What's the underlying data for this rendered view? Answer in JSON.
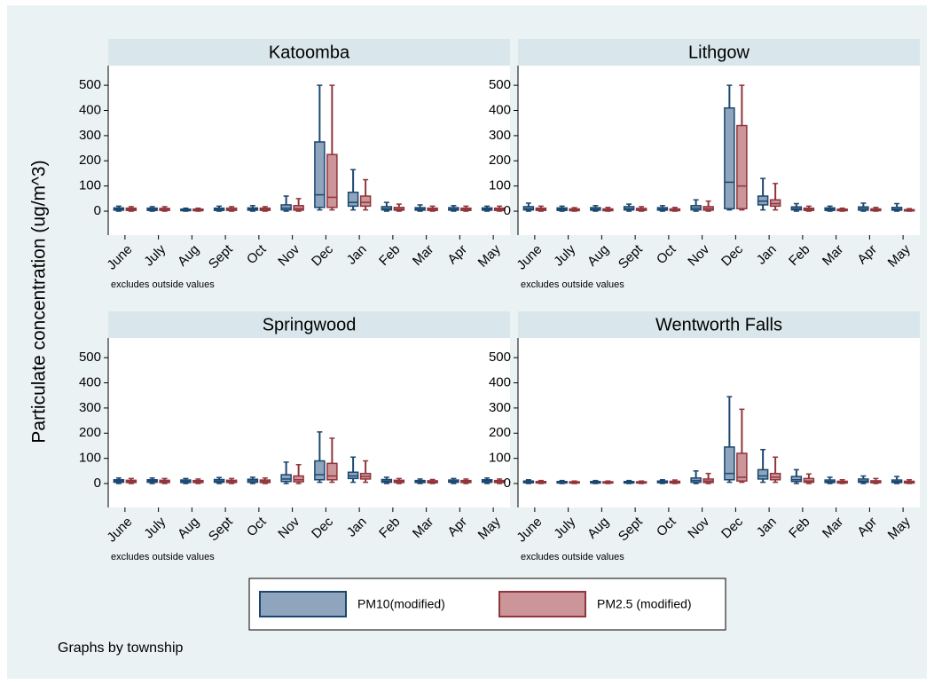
{
  "chart_data": {
    "type": "box",
    "ylabel": "Particulate concentration (ug/m^3)",
    "categories": [
      "June",
      "July",
      "Aug",
      "Sept",
      "Oct",
      "Nov",
      "Dec",
      "Jan",
      "Feb",
      "Mar",
      "Apr",
      "May"
    ],
    "series": [
      {
        "name": "PM10(modified)",
        "color": "#1a476f",
        "fill": "#8fa4bd"
      },
      {
        "name": "PM2.5 (modified)",
        "color": "#90353b",
        "fill": "#cc9599"
      }
    ],
    "ylim": [
      -95,
      578
    ],
    "yticks": [
      0,
      100,
      200,
      300,
      400,
      500
    ],
    "note": "Graphs by township",
    "panels": [
      {
        "title": "Katoomba",
        "note": "excludes outside values",
        "series": [
          {
            "values": [
              [
                0,
                4,
                8,
                13,
                20
              ],
              [
                0,
                3,
                7,
                12,
                18
              ],
              [
                0,
                2,
                5,
                8,
                12
              ],
              [
                0,
                3,
                7,
                12,
                20
              ],
              [
                0,
                4,
                8,
                13,
                22
              ],
              [
                0,
                5,
                12,
                25,
                60
              ],
              [
                5,
                15,
                65,
                275,
                500
              ],
              [
                5,
                20,
                35,
                75,
                165
              ],
              [
                0,
                5,
                10,
                18,
                35
              ],
              [
                0,
                4,
                8,
                14,
                25
              ],
              [
                0,
                4,
                8,
                14,
                22
              ],
              [
                0,
                4,
                8,
                13,
                20
              ]
            ]
          },
          {
            "values": [
              [
                0,
                3,
                7,
                12,
                18
              ],
              [
                0,
                3,
                6,
                11,
                18
              ],
              [
                0,
                2,
                4,
                8,
                12
              ],
              [
                0,
                3,
                6,
                12,
                18
              ],
              [
                0,
                3,
                7,
                12,
                18
              ],
              [
                0,
                4,
                10,
                22,
                50
              ],
              [
                5,
                15,
                55,
                225,
                500
              ],
              [
                5,
                20,
                35,
                60,
                125
              ],
              [
                0,
                4,
                8,
                15,
                28
              ],
              [
                0,
                3,
                7,
                12,
                20
              ],
              [
                0,
                3,
                7,
                12,
                20
              ],
              [
                0,
                3,
                7,
                12,
                20
              ]
            ]
          }
        ]
      },
      {
        "title": "Lithgow",
        "note": "excludes outside values",
        "series": [
          {
            "values": [
              [
                0,
                5,
                10,
                18,
                32
              ],
              [
                0,
                3,
                8,
                13,
                20
              ],
              [
                0,
                4,
                8,
                14,
                22
              ],
              [
                0,
                5,
                10,
                18,
                28
              ],
              [
                0,
                4,
                8,
                14,
                22
              ],
              [
                0,
                5,
                12,
                22,
                45
              ],
              [
                5,
                10,
                115,
                410,
                500
              ],
              [
                5,
                25,
                40,
                60,
                130
              ],
              [
                0,
                5,
                10,
                17,
                30
              ],
              [
                0,
                3,
                8,
                13,
                20
              ],
              [
                0,
                4,
                10,
                17,
                32
              ],
              [
                0,
                4,
                8,
                15,
                30
              ]
            ]
          },
          {
            "values": [
              [
                0,
                3,
                7,
                12,
                20
              ],
              [
                0,
                2,
                5,
                9,
                14
              ],
              [
                0,
                2,
                5,
                9,
                15
              ],
              [
                0,
                3,
                6,
                11,
                18
              ],
              [
                0,
                2,
                5,
                9,
                15
              ],
              [
                0,
                4,
                10,
                18,
                40
              ],
              [
                5,
                10,
                100,
                340,
                500
              ],
              [
                5,
                20,
                30,
                45,
                110
              ],
              [
                0,
                3,
                7,
                12,
                20
              ],
              [
                0,
                2,
                4,
                8,
                12
              ],
              [
                0,
                2,
                5,
                9,
                15
              ],
              [
                0,
                1,
                3,
                6,
                10
              ]
            ]
          }
        ]
      },
      {
        "title": "Springwood",
        "note": "excludes outside values",
        "series": [
          {
            "values": [
              [
                0,
                5,
                10,
                15,
                22
              ],
              [
                0,
                5,
                10,
                15,
                22
              ],
              [
                0,
                4,
                9,
                14,
                20
              ],
              [
                0,
                5,
                10,
                16,
                24
              ],
              [
                0,
                5,
                11,
                17,
                25
              ],
              [
                0,
                8,
                18,
                35,
                85
              ],
              [
                5,
                15,
                35,
                90,
                205
              ],
              [
                5,
                20,
                30,
                45,
                105
              ],
              [
                0,
                5,
                10,
                16,
                25
              ],
              [
                0,
                4,
                8,
                12,
                18
              ],
              [
                0,
                5,
                9,
                14,
                20
              ],
              [
                0,
                5,
                10,
                15,
                22
              ]
            ]
          },
          {
            "values": [
              [
                0,
                4,
                8,
                13,
                20
              ],
              [
                0,
                4,
                8,
                13,
                20
              ],
              [
                0,
                4,
                8,
                12,
                18
              ],
              [
                0,
                4,
                8,
                13,
                20
              ],
              [
                0,
                4,
                9,
                14,
                22
              ],
              [
                0,
                7,
                15,
                30,
                75
              ],
              [
                5,
                15,
                30,
                80,
                180
              ],
              [
                5,
                18,
                28,
                40,
                90
              ],
              [
                0,
                4,
                8,
                13,
                20
              ],
              [
                0,
                3,
                7,
                11,
                16
              ],
              [
                0,
                4,
                8,
                12,
                18
              ],
              [
                0,
                4,
                8,
                12,
                18
              ]
            ]
          }
        ]
      },
      {
        "title": "Wentworth Falls",
        "note": "excludes outside values",
        "series": [
          {
            "values": [
              [
                0,
                3,
                6,
                10,
                15
              ],
              [
                0,
                2,
                5,
                8,
                12
              ],
              [
                0,
                2,
                5,
                8,
                12
              ],
              [
                0,
                2,
                5,
                8,
                12
              ],
              [
                0,
                3,
                6,
                10,
                15
              ],
              [
                0,
                5,
                12,
                22,
                50
              ],
              [
                5,
                15,
                40,
                145,
                345
              ],
              [
                5,
                18,
                30,
                55,
                135
              ],
              [
                0,
                8,
                15,
                28,
                55
              ],
              [
                0,
                4,
                8,
                14,
                25
              ],
              [
                0,
                5,
                10,
                18,
                30
              ],
              [
                0,
                4,
                8,
                14,
                28
              ]
            ]
          },
          {
            "values": [
              [
                0,
                2,
                5,
                8,
                12
              ],
              [
                0,
                2,
                4,
                7,
                10
              ],
              [
                0,
                2,
                4,
                7,
                10
              ],
              [
                0,
                2,
                4,
                7,
                10
              ],
              [
                0,
                2,
                5,
                9,
                14
              ],
              [
                0,
                4,
                10,
                18,
                40
              ],
              [
                5,
                10,
                25,
                120,
                295
              ],
              [
                5,
                15,
                25,
                40,
                105
              ],
              [
                0,
                5,
                10,
                20,
                38
              ],
              [
                0,
                2,
                5,
                9,
                15
              ],
              [
                0,
                3,
                6,
                11,
                20
              ],
              [
                0,
                2,
                5,
                9,
                15
              ]
            ]
          }
        ]
      }
    ]
  }
}
